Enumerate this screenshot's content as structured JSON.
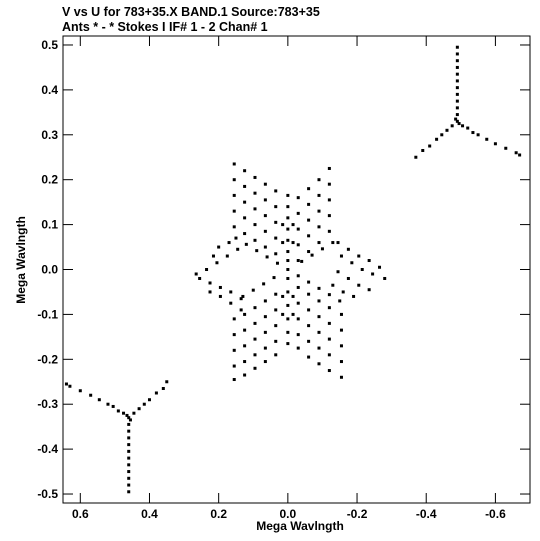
{
  "chart_data": {
    "type": "scatter",
    "title_line1": "V vs U for 783+35.X BAND.1   Source:783+35",
    "title_line2": "Ants * - *     Stokes I  IF# 1 - 2  Chan# 1",
    "xlabel": "Mega Wavlngth",
    "ylabel": "Mega Wavlngth",
    "xlim": [
      0.65,
      -0.7
    ],
    "ylim": [
      -0.52,
      0.52
    ],
    "xticks": [
      0.6,
      0.4,
      0.2,
      0.0,
      -0.2,
      -0.4,
      -0.6
    ],
    "xtick_labels": [
      "0.6",
      "0.4",
      "0.2",
      "0.0",
      "-0.2",
      "-0.4",
      "-0.6"
    ],
    "yticks": [
      0.5,
      0.4,
      0.3,
      0.2,
      0.1,
      0.0,
      -0.1,
      -0.2,
      -0.3,
      -0.4,
      -0.5
    ],
    "ytick_labels": [
      "0.5",
      "0.4",
      "0.3",
      "0.2",
      "0.1",
      "0.0",
      "-0.1",
      "-0.2",
      "-0.3",
      "-0.4",
      "-0.5"
    ],
    "marker_color": "#000000",
    "series": [
      {
        "points": [
          [
            0.0,
            0.0
          ],
          [
            0.0,
            0.165
          ],
          [
            0.0,
            0.14
          ],
          [
            0.0,
            0.115
          ],
          [
            0.0,
            0.09
          ],
          [
            0.0,
            0.065
          ],
          [
            0.0,
            0.04
          ],
          [
            0.0,
            0.02
          ],
          [
            0.0,
            -0.02
          ],
          [
            0.0,
            -0.05
          ],
          [
            0.0,
            -0.08
          ],
          [
            0.0,
            -0.11
          ],
          [
            0.0,
            -0.14
          ],
          [
            0.0,
            -0.165
          ],
          [
            0.15,
            0.07
          ],
          [
            0.12,
            0.056
          ],
          [
            0.09,
            0.042
          ],
          [
            0.06,
            0.028
          ],
          [
            0.03,
            0.014
          ],
          [
            -0.03,
            -0.014
          ],
          [
            -0.06,
            -0.028
          ],
          [
            -0.09,
            -0.042
          ],
          [
            -0.12,
            -0.056
          ],
          [
            -0.15,
            -0.07
          ],
          [
            0.13,
            -0.06
          ],
          [
            0.1,
            -0.046
          ],
          [
            0.07,
            -0.032
          ],
          [
            0.04,
            -0.018
          ],
          [
            -0.04,
            0.018
          ],
          [
            -0.07,
            0.032
          ],
          [
            -0.1,
            0.046
          ],
          [
            -0.13,
            0.06
          ],
          [
            0.155,
            0.235
          ],
          [
            0.155,
            0.2
          ],
          [
            0.155,
            0.165
          ],
          [
            0.155,
            0.13
          ],
          [
            0.155,
            0.095
          ],
          [
            0.125,
            0.22
          ],
          [
            0.125,
            0.185
          ],
          [
            0.125,
            0.15
          ],
          [
            0.125,
            0.115
          ],
          [
            0.125,
            0.08
          ],
          [
            0.095,
            0.205
          ],
          [
            0.095,
            0.17
          ],
          [
            0.095,
            0.135
          ],
          [
            0.095,
            0.1
          ],
          [
            0.095,
            0.065
          ],
          [
            0.065,
            0.19
          ],
          [
            0.065,
            0.155
          ],
          [
            0.065,
            0.12
          ],
          [
            0.065,
            0.085
          ],
          [
            0.065,
            0.05
          ],
          [
            0.035,
            0.175
          ],
          [
            0.035,
            0.14
          ],
          [
            0.035,
            0.105
          ],
          [
            0.035,
            0.07
          ],
          [
            0.035,
            0.035
          ],
          [
            -0.03,
            0.16
          ],
          [
            -0.03,
            0.125
          ],
          [
            -0.03,
            0.09
          ],
          [
            -0.03,
            0.055
          ],
          [
            -0.03,
            0.02
          ],
          [
            -0.06,
            0.18
          ],
          [
            -0.06,
            0.145
          ],
          [
            -0.06,
            0.11
          ],
          [
            -0.06,
            0.075
          ],
          [
            -0.06,
            0.04
          ],
          [
            -0.09,
            0.2
          ],
          [
            -0.09,
            0.165
          ],
          [
            -0.09,
            0.13
          ],
          [
            -0.09,
            0.095
          ],
          [
            -0.09,
            0.06
          ],
          [
            -0.12,
            0.225
          ],
          [
            -0.12,
            0.19
          ],
          [
            -0.12,
            0.155
          ],
          [
            -0.12,
            0.12
          ],
          [
            -0.12,
            0.085
          ],
          [
            -0.145,
            0.06
          ],
          [
            -0.175,
            0.045
          ],
          [
            -0.205,
            0.03
          ],
          [
            -0.235,
            0.02
          ],
          [
            -0.265,
            0.005
          ],
          [
            -0.155,
            0.03
          ],
          [
            -0.185,
            0.015
          ],
          [
            -0.215,
            0.0
          ],
          [
            -0.245,
            -0.01
          ],
          [
            -0.28,
            -0.02
          ],
          [
            -0.145,
            -0.005
          ],
          [
            -0.175,
            -0.02
          ],
          [
            -0.205,
            -0.035
          ],
          [
            -0.235,
            -0.045
          ],
          [
            -0.13,
            -0.035
          ],
          [
            -0.16,
            -0.05
          ],
          [
            -0.19,
            -0.06
          ],
          [
            0.265,
            -0.01
          ],
          [
            0.235,
            0.0
          ],
          [
            0.205,
            0.015
          ],
          [
            0.175,
            0.03
          ],
          [
            0.145,
            0.045
          ],
          [
            0.255,
            -0.02
          ],
          [
            0.225,
            -0.03
          ],
          [
            0.195,
            -0.04
          ],
          [
            0.165,
            -0.05
          ],
          [
            0.135,
            -0.065
          ],
          [
            0.225,
            -0.05
          ],
          [
            0.195,
            -0.06
          ],
          [
            0.165,
            -0.075
          ],
          [
            0.135,
            -0.09
          ],
          [
            0.2,
            0.05
          ],
          [
            0.17,
            0.06
          ],
          [
            0.215,
            0.03
          ],
          [
            0.155,
            -0.11
          ],
          [
            0.155,
            -0.145
          ],
          [
            0.155,
            -0.18
          ],
          [
            0.155,
            -0.215
          ],
          [
            0.155,
            -0.245
          ],
          [
            0.125,
            -0.1
          ],
          [
            0.125,
            -0.135
          ],
          [
            0.125,
            -0.17
          ],
          [
            0.125,
            -0.205
          ],
          [
            0.125,
            -0.235
          ],
          [
            0.095,
            -0.085
          ],
          [
            0.095,
            -0.12
          ],
          [
            0.095,
            -0.155
          ],
          [
            0.095,
            -0.19
          ],
          [
            0.095,
            -0.22
          ],
          [
            0.065,
            -0.07
          ],
          [
            0.065,
            -0.105
          ],
          [
            0.065,
            -0.14
          ],
          [
            0.065,
            -0.175
          ],
          [
            0.065,
            -0.205
          ],
          [
            0.035,
            -0.055
          ],
          [
            0.035,
            -0.09
          ],
          [
            0.035,
            -0.125
          ],
          [
            0.035,
            -0.16
          ],
          [
            0.035,
            -0.19
          ],
          [
            -0.03,
            -0.04
          ],
          [
            -0.03,
            -0.075
          ],
          [
            -0.03,
            -0.11
          ],
          [
            -0.03,
            -0.145
          ],
          [
            -0.03,
            -0.175
          ],
          [
            -0.06,
            -0.055
          ],
          [
            -0.06,
            -0.09
          ],
          [
            -0.06,
            -0.125
          ],
          [
            -0.06,
            -0.16
          ],
          [
            -0.06,
            -0.195
          ],
          [
            -0.09,
            -0.07
          ],
          [
            -0.09,
            -0.105
          ],
          [
            -0.09,
            -0.14
          ],
          [
            -0.09,
            -0.175
          ],
          [
            -0.09,
            -0.21
          ],
          [
            -0.12,
            -0.085
          ],
          [
            -0.12,
            -0.12
          ],
          [
            -0.12,
            -0.155
          ],
          [
            -0.12,
            -0.19
          ],
          [
            -0.12,
            -0.225
          ],
          [
            -0.155,
            -0.1
          ],
          [
            -0.155,
            -0.135
          ],
          [
            -0.155,
            -0.17
          ],
          [
            -0.155,
            -0.205
          ],
          [
            -0.155,
            -0.24
          ],
          [
            0.015,
            0.1
          ],
          [
            0.015,
            0.06
          ],
          [
            0.015,
            -0.06
          ],
          [
            0.015,
            -0.1
          ],
          [
            -0.015,
            0.1
          ],
          [
            -0.015,
            0.06
          ],
          [
            -0.015,
            -0.06
          ],
          [
            -0.015,
            -0.1
          ]
        ]
      },
      {
        "points": [
          [
            -0.49,
            0.495
          ],
          [
            -0.49,
            0.48
          ],
          [
            -0.49,
            0.465
          ],
          [
            -0.49,
            0.45
          ],
          [
            -0.49,
            0.435
          ],
          [
            -0.49,
            0.42
          ],
          [
            -0.49,
            0.405
          ],
          [
            -0.49,
            0.39
          ],
          [
            -0.49,
            0.375
          ],
          [
            -0.49,
            0.36
          ],
          [
            -0.49,
            0.345
          ],
          [
            -0.49,
            0.33
          ],
          [
            -0.495,
            0.325
          ],
          [
            -0.485,
            0.335
          ],
          [
            -0.505,
            0.32
          ],
          [
            -0.52,
            0.315
          ],
          [
            -0.535,
            0.305
          ],
          [
            -0.55,
            0.3
          ],
          [
            -0.575,
            0.29
          ],
          [
            -0.6,
            0.28
          ],
          [
            -0.63,
            0.27
          ],
          [
            -0.66,
            0.26
          ],
          [
            -0.67,
            0.255
          ],
          [
            -0.475,
            0.32
          ],
          [
            -0.46,
            0.31
          ],
          [
            -0.445,
            0.3
          ],
          [
            -0.43,
            0.29
          ],
          [
            -0.41,
            0.275
          ],
          [
            -0.39,
            0.265
          ],
          [
            -0.37,
            0.25
          ]
        ]
      },
      {
        "points": [
          [
            0.46,
            -0.495
          ],
          [
            0.46,
            -0.48
          ],
          [
            0.46,
            -0.465
          ],
          [
            0.46,
            -0.45
          ],
          [
            0.46,
            -0.435
          ],
          [
            0.46,
            -0.42
          ],
          [
            0.46,
            -0.405
          ],
          [
            0.46,
            -0.39
          ],
          [
            0.46,
            -0.375
          ],
          [
            0.46,
            -0.36
          ],
          [
            0.46,
            -0.345
          ],
          [
            0.46,
            -0.33
          ],
          [
            0.465,
            -0.325
          ],
          [
            0.455,
            -0.335
          ],
          [
            0.475,
            -0.32
          ],
          [
            0.49,
            -0.315
          ],
          [
            0.505,
            -0.305
          ],
          [
            0.52,
            -0.3
          ],
          [
            0.545,
            -0.29
          ],
          [
            0.57,
            -0.28
          ],
          [
            0.6,
            -0.27
          ],
          [
            0.63,
            -0.26
          ],
          [
            0.64,
            -0.255
          ],
          [
            0.445,
            -0.32
          ],
          [
            0.43,
            -0.31
          ],
          [
            0.415,
            -0.3
          ],
          [
            0.4,
            -0.29
          ],
          [
            0.38,
            -0.275
          ],
          [
            0.36,
            -0.265
          ],
          [
            0.35,
            -0.25
          ]
        ]
      }
    ]
  }
}
